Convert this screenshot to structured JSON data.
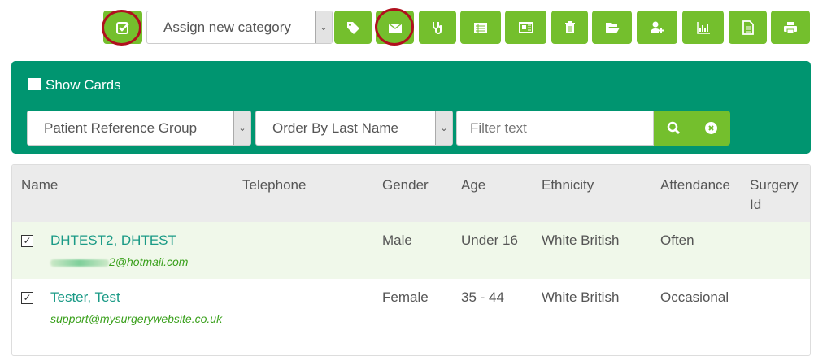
{
  "toolbar": {
    "category_select": "Assign new category",
    "buttons": [
      "select-all",
      "tag",
      "email",
      "stethoscope",
      "list",
      "newspaper",
      "delete",
      "folder-open",
      "add-user",
      "bar-chart",
      "document",
      "print"
    ]
  },
  "filters": {
    "show_cards": "Show Cards",
    "group_select": "Patient Reference Group",
    "order_select": "Order By Last Name",
    "filter_placeholder": "Filter text"
  },
  "table": {
    "headers": [
      "Name",
      "Telephone",
      "Gender",
      "Age",
      "Ethnicity",
      "Attendance",
      "Surgery Id"
    ],
    "rows": [
      {
        "name": "DHTEST2, DHTEST",
        "email": "2@hotmail.com",
        "telephone": "",
        "gender": "Male",
        "age": "Under 16",
        "ethnicity": "White British",
        "attendance": "Often",
        "surgery_id": "",
        "checked": true
      },
      {
        "name": "Tester, Test",
        "email": "support@mysurgerywebsite.co.uk",
        "telephone": "",
        "gender": "Female",
        "age": "35 - 44",
        "ethnicity": "White British",
        "attendance": "Occasional",
        "surgery_id": "",
        "checked": true
      }
    ]
  },
  "colors": {
    "accent": "#74bf2d",
    "panel": "#009570",
    "highlight_row": "#f0f8ea",
    "annotation": "#b0101e"
  }
}
